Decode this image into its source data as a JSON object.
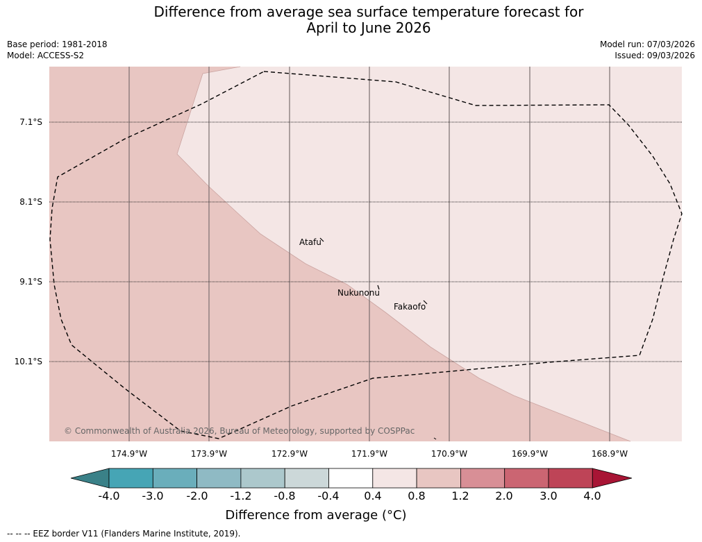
{
  "title": {
    "line1": "Difference from average sea surface temperature forecast for",
    "line2": "April to June 2026"
  },
  "meta": {
    "base_period": "Base period: 1981-2018",
    "model": "Model: ACCESS-S2",
    "model_run": "Model run: 07/03/2026",
    "issued": "Issued: 09/03/2026"
  },
  "map": {
    "latitude_labels": [
      "7.1°S",
      "8.1°S",
      "9.1°S",
      "10.1°S"
    ],
    "longitude_labels": [
      "174.9°W",
      "173.9°W",
      "172.9°W",
      "171.9°W",
      "170.9°W",
      "169.9°W",
      "168.9°W"
    ],
    "places": [
      "Atafu",
      "Nukunonu",
      "Fakaofo"
    ],
    "regions": [
      {
        "anomaly_range": "0.8 to 1.2",
        "color": "#e8c6c2"
      },
      {
        "anomaly_range": "0.4 to 0.8",
        "color": "#f4e6e5"
      }
    ],
    "copyright": "© Commonwealth of Australia 2026, Bureau of Meteorology, supported by COSPPac"
  },
  "colorbar": {
    "ticks": [
      "-4.0",
      "-3.0",
      "-2.0",
      "-1.2",
      "-0.8",
      "-0.4",
      "0.4",
      "0.8",
      "1.2",
      "2.0",
      "3.0",
      "4.0"
    ],
    "colors": [
      "#3a8188",
      "#46a5b5",
      "#6aaebb",
      "#8fbac4",
      "#acc8cc",
      "#ccd8d9",
      "#ffffff",
      "#f4e6e5",
      "#e8c6c2",
      "#d88f96",
      "#cb6572",
      "#be4457",
      "#a81535"
    ],
    "title": "Difference from average (°C)"
  },
  "footnote": "--  --  -- EEZ border V11 (Flanders Marine Institute, 2019)."
}
